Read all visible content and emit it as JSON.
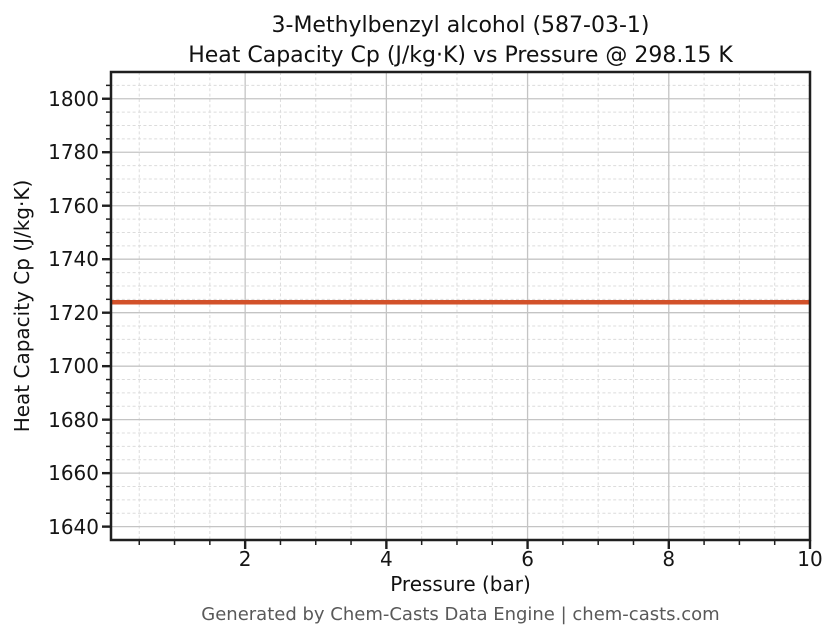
{
  "figure": {
    "title_line1": "3-Methylbenzyl alcohol (587-03-1)",
    "title_line2": "Heat Capacity Cp (J/kg·K) vs Pressure @ 298.15 K",
    "footer": "Generated by Chem-Casts Data Engine | chem-casts.com"
  },
  "chart_data": {
    "type": "line",
    "title": "3-Methylbenzyl alcohol (587-03-1)\nHeat Capacity Cp (J/kg·K) vs Pressure @ 298.15 K",
    "xlabel": "Pressure (bar)",
    "ylabel": "Heat Capacity Cp (J/kg·K)",
    "xlim": [
      0.1,
      10
    ],
    "ylim": [
      1635,
      1810
    ],
    "x_major_ticks": [
      2,
      4,
      6,
      8,
      10
    ],
    "y_major_ticks": [
      1640,
      1660,
      1680,
      1700,
      1720,
      1740,
      1760,
      1780,
      1800
    ],
    "x_minor_step": 0.5,
    "y_minor_step": 5,
    "grid": {
      "major": true,
      "minor": true
    },
    "legend": null,
    "series": [
      {
        "name": "Heat Capacity Cp",
        "color": "#d2512a",
        "line_width": 4.5,
        "x": [
          0.1,
          1,
          2,
          3,
          4,
          5,
          6,
          7,
          8,
          9,
          10
        ],
        "y": [
          1723.9,
          1723.9,
          1723.9,
          1723.9,
          1723.9,
          1723.9,
          1723.9,
          1723.9,
          1723.9,
          1723.9,
          1723.9
        ]
      }
    ],
    "style": {
      "background": "#ffffff",
      "spine_color": "#1f1f1f",
      "grid_major_color": "#c4c4c4",
      "grid_minor_color": "#dcdcdc",
      "tick_color": "#1f1f1f",
      "text_color": "#111111",
      "footer_color": "#595959"
    }
  }
}
